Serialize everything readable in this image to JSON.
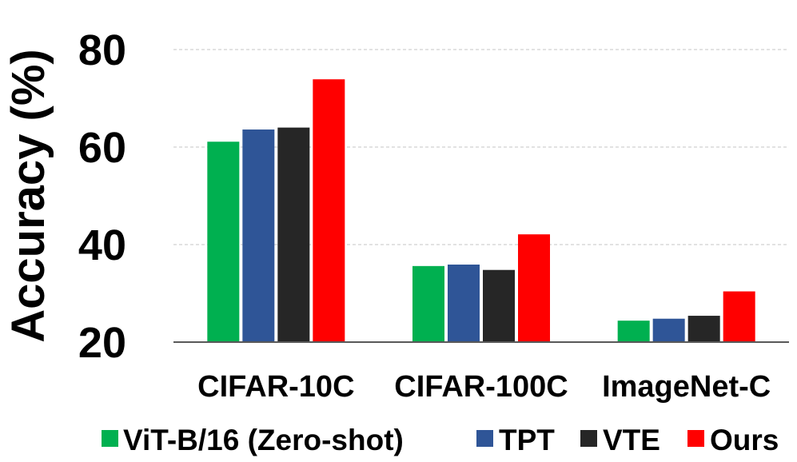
{
  "chart_data": {
    "type": "bar",
    "title": "",
    "xlabel": "",
    "ylabel": "Accuracy (%)",
    "ylim": [
      20,
      80
    ],
    "yticks": [
      20,
      40,
      60,
      80
    ],
    "categories": [
      "CIFAR-10C",
      "CIFAR-100C",
      "ImageNet-C"
    ],
    "series": [
      {
        "name": "ViT-B/16 (Zero-shot)",
        "color": "#00b050",
        "values": [
          61.1,
          35.6,
          24.4
        ]
      },
      {
        "name": "TPT",
        "color": "#2f5597",
        "values": [
          63.6,
          35.9,
          24.8
        ]
      },
      {
        "name": "VTE",
        "color": "#262626",
        "values": [
          64.0,
          34.8,
          25.4
        ]
      },
      {
        "name": "Ours",
        "color": "#ff0000",
        "values": [
          73.9,
          42.1,
          30.4
        ]
      }
    ],
    "grid": true,
    "legend_position": "bottom"
  }
}
